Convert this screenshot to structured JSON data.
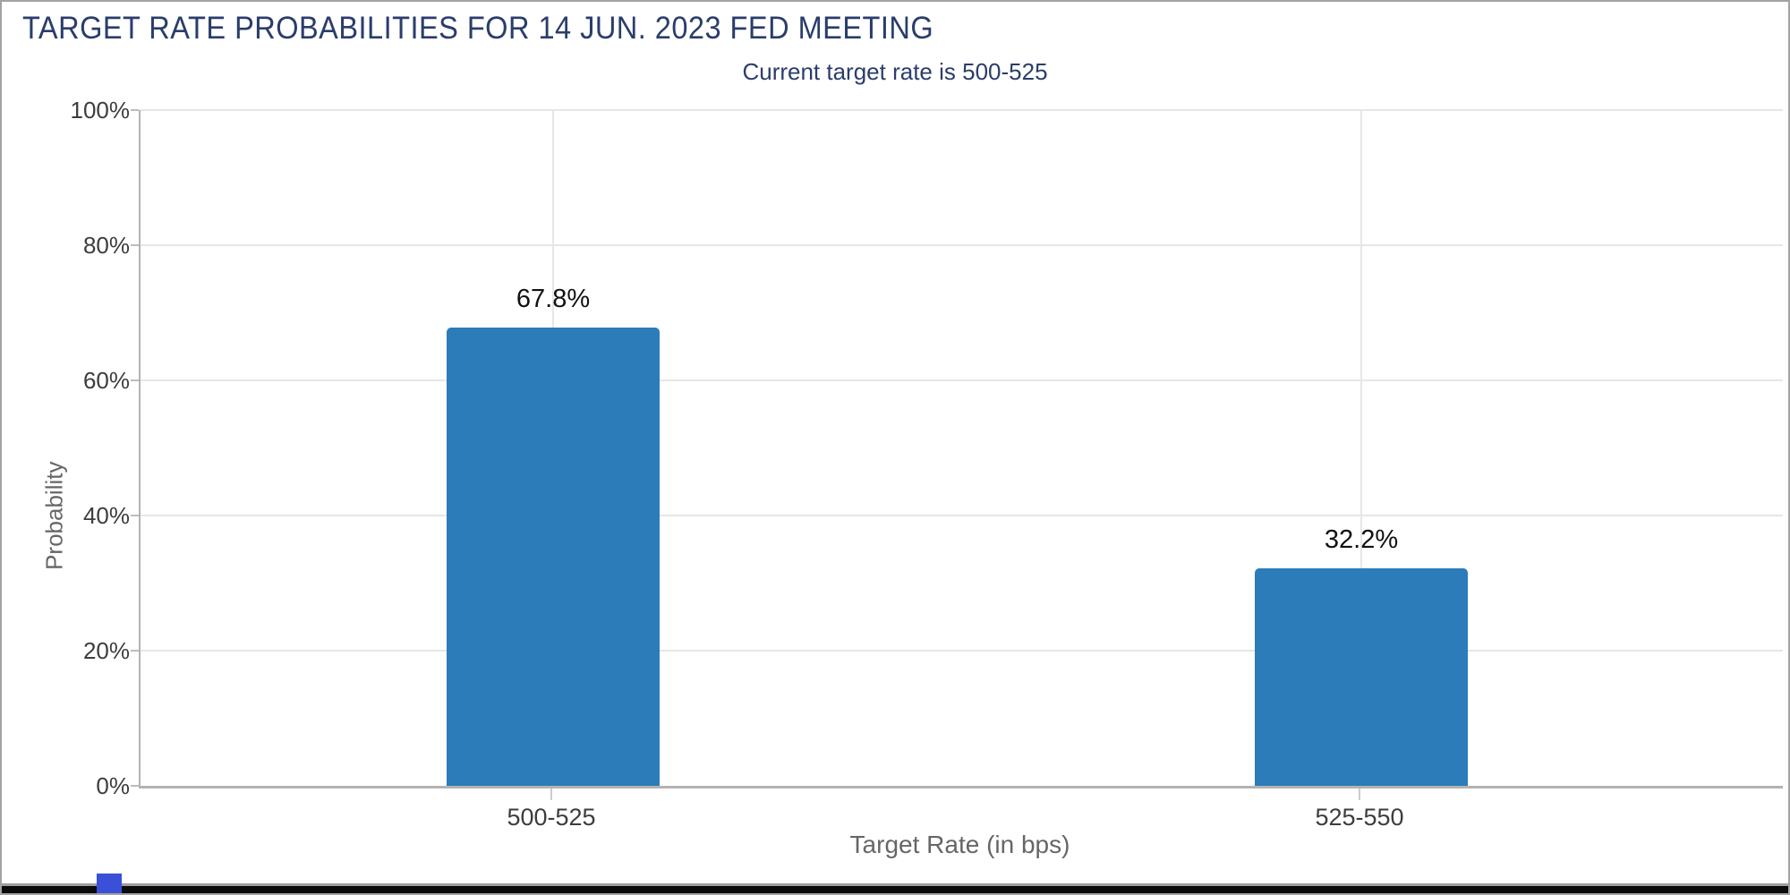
{
  "chart_data": {
    "type": "bar",
    "title": "TARGET RATE PROBABILITIES FOR 14 JUN. 2023 FED MEETING",
    "subtitle": "Current target rate is 500-525",
    "categories": [
      "500-525",
      "525-550"
    ],
    "values": [
      67.8,
      32.2
    ],
    "bar_labels": [
      "67.8%",
      "32.2%"
    ],
    "xlabel": "Target Rate (in bps)",
    "ylabel": "Probability",
    "ylim": [
      0,
      100
    ],
    "ytick_labels": [
      "0%",
      "20%",
      "40%",
      "60%",
      "80%",
      "100%"
    ],
    "grid": true,
    "legend": false,
    "bar_color": "#2b7cb9"
  },
  "watermark": {
    "icon": "q-logo"
  },
  "colors": {
    "title_navy": "#2a3d6b",
    "bar_blue": "#2b7cb9",
    "gridline": "#e6e6e6",
    "axis_line": "#b3b3b3",
    "tick_text": "#3d3d3d",
    "axis_title_text": "#666666",
    "watermark_gray": "#c7c7c7",
    "watermark_stripe_blue": "#b9e8f9",
    "corner_square_blue": "#3a50d8",
    "frame_border": "#a3a3a3",
    "bottom_strip_black": "#0b0b0b"
  }
}
